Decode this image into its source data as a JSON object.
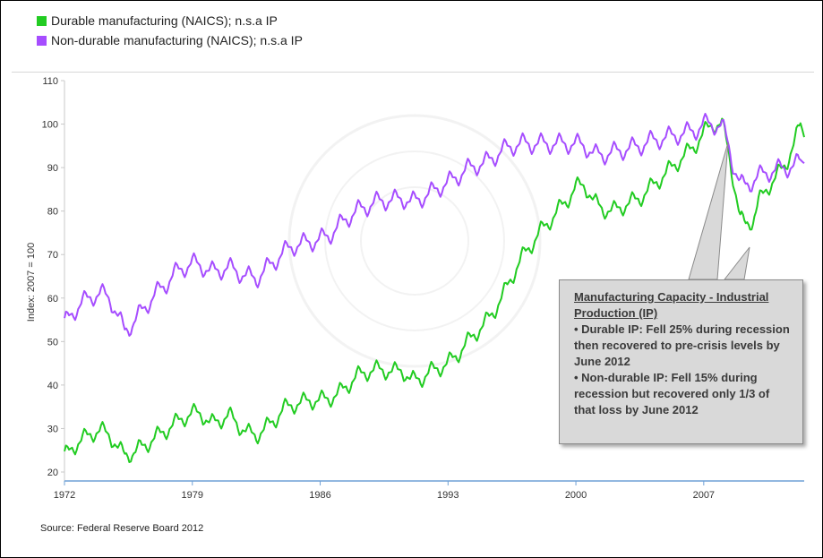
{
  "legend": [
    {
      "label": "Durable manufacturing (NAICS); n.s.a IP",
      "color": "#22cc22"
    },
    {
      "label": "Non-durable manufacturing (NAICS); n.s.a IP",
      "color": "#a64dff"
    }
  ],
  "source": "Source: Federal Reserve Board 2012",
  "callout": {
    "title": "Manufacturing Capacity - Industrial Production (IP)",
    "line1": "• Durable IP: Fell 25% during recession then recovered to pre-crisis levels by June 2012",
    "line2": "• Non-durable IP: Fell 15% during recession but recovered only 1/3 of that loss by June 2012"
  },
  "chart_data": {
    "type": "line",
    "ylabel": "Index: 2007 = 100",
    "ylim": [
      20,
      110
    ],
    "xlim": [
      1972,
      2012.5
    ],
    "yticks": [
      20,
      30,
      40,
      50,
      60,
      70,
      80,
      90,
      100,
      110
    ],
    "xticks": [
      "1972",
      "1979",
      "1986",
      "1993",
      "2000",
      "2007"
    ],
    "grid": false,
    "legend_position": "top-left",
    "series": [
      {
        "name": "Durable manufacturing (NAICS); n.s.a IP",
        "color": "#22cc22",
        "x": [
          1972,
          1972.5,
          1973,
          1973.5,
          1974,
          1974.5,
          1975,
          1975.3,
          1975.8,
          1976.5,
          1977,
          1977.5,
          1978,
          1978.5,
          1979,
          1979.5,
          1980,
          1980.5,
          1981,
          1981.5,
          1982,
          1982.5,
          1983,
          1983.5,
          1984,
          1984.5,
          1985,
          1985.5,
          1986,
          1986.5,
          1987,
          1987.5,
          1988,
          1988.5,
          1989,
          1989.5,
          1990,
          1990.5,
          1991,
          1991.5,
          1992,
          1992.5,
          1993,
          1993.5,
          1994,
          1994.5,
          1995,
          1995.5,
          1996,
          1996.5,
          1997,
          1997.5,
          1998,
          1998.5,
          1999,
          1999.5,
          2000,
          2000.5,
          2001,
          2001.5,
          2002,
          2002.5,
          2003,
          2003.5,
          2004,
          2004.5,
          2005,
          2005.5,
          2006,
          2006.5,
          2007,
          2007.5,
          2008,
          2008.3,
          2008.6,
          2009,
          2009.3,
          2009.7,
          2010,
          2010.5,
          2011,
          2011.5,
          2012,
          2012.3,
          2012.5
        ],
        "y": [
          23.5,
          26,
          27.5,
          29,
          29.5,
          28.5,
          25,
          24,
          24.5,
          26.5,
          28,
          29.5,
          31,
          32.5,
          33.5,
          33.5,
          31,
          32,
          33,
          31,
          29,
          28.5,
          30,
          32,
          34.5,
          35.5,
          36,
          36.5,
          36.5,
          37,
          38,
          40,
          42,
          43,
          43.5,
          43.5,
          43,
          43.5,
          41,
          41.5,
          43,
          44,
          45,
          47,
          49.5,
          52,
          54,
          57,
          60.5,
          65,
          69,
          72,
          75,
          77.5,
          80,
          82.5,
          85.5,
          86,
          82,
          80.5,
          80,
          81,
          82,
          83,
          85,
          87,
          89,
          91,
          93,
          95,
          98,
          100,
          100,
          95,
          88,
          78,
          77,
          78,
          82,
          85.5,
          88,
          91,
          96,
          100,
          97
        ]
      },
      {
        "name": "Non-durable manufacturing (NAICS); n.s.a IP",
        "color": "#a64dff",
        "x": [
          1972,
          1972.5,
          1973,
          1973.5,
          1974,
          1974.5,
          1975,
          1975.3,
          1975.8,
          1976.5,
          1977,
          1977.5,
          1978,
          1978.5,
          1979,
          1979.5,
          1980,
          1980.5,
          1981,
          1981.5,
          1982,
          1982.5,
          1983,
          1983.5,
          1984,
          1984.5,
          1985,
          1985.5,
          1986,
          1986.5,
          1987,
          1987.5,
          1988,
          1988.5,
          1989,
          1989.5,
          1990,
          1990.5,
          1991,
          1991.5,
          1992,
          1992.5,
          1993,
          1993.5,
          1994,
          1994.5,
          1995,
          1995.5,
          1996,
          1996.5,
          1997,
          1997.5,
          1998,
          1998.5,
          1999,
          1999.5,
          2000,
          2000.5,
          2001,
          2001.5,
          2002,
          2002.5,
          2003,
          2003.5,
          2004,
          2004.5,
          2005,
          2005.5,
          2006,
          2006.5,
          2007,
          2007.5,
          2008,
          2008.3,
          2008.6,
          2009,
          2009.3,
          2009.7,
          2010,
          2010.5,
          2011,
          2011.5,
          2012,
          2012.3,
          2012.5
        ],
        "y": [
          54,
          57,
          59,
          60.5,
          61,
          60,
          55,
          52.5,
          54.5,
          58.5,
          61,
          63,
          65.5,
          67,
          68,
          67.5,
          66,
          66.5,
          67,
          66,
          65,
          64.5,
          66.5,
          68.5,
          70.5,
          72,
          72.5,
          73,
          73.5,
          74.5,
          76.5,
          78.5,
          80,
          81,
          82,
          82.5,
          82.5,
          83,
          82,
          83,
          84,
          85.5,
          86.5,
          88,
          89.5,
          90.5,
          91,
          92.5,
          94,
          95,
          95.5,
          95.5,
          95.5,
          95.5,
          95.5,
          95.5,
          95.5,
          95,
          93,
          93,
          93.5,
          94,
          94.5,
          95,
          96,
          96.5,
          97,
          97.5,
          98,
          98.5,
          100,
          100,
          99.5,
          96,
          91,
          86,
          86,
          87,
          88,
          89,
          89.5,
          90,
          90.5,
          91.5,
          91
        ]
      }
    ]
  }
}
